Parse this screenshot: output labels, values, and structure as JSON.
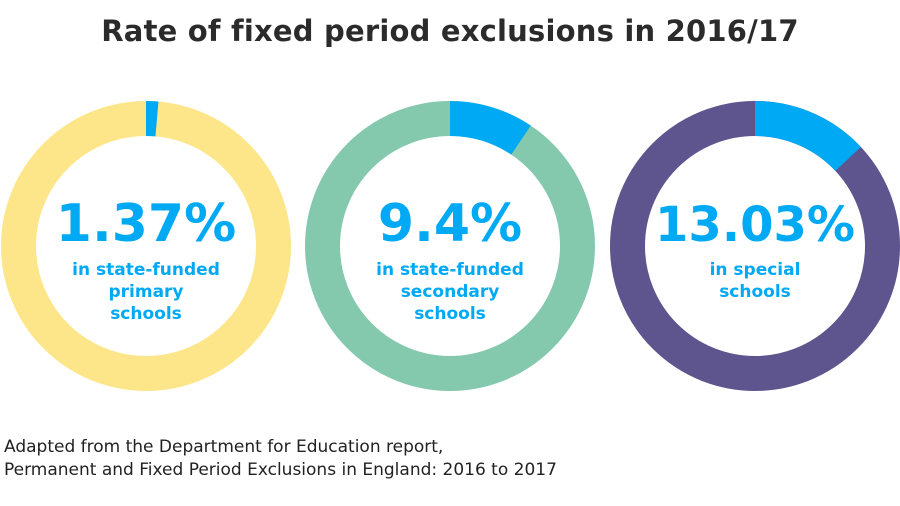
{
  "title": "Rate of fixed period exclusions in 2016/17",
  "source": {
    "line1": "Adapted from the Department for Education report,",
    "line2": "Permanent and Fixed Period Exclusions in England: 2016 to 2017"
  },
  "colors": {
    "highlight": "#00a9f4",
    "text_blue": "#00a9f4",
    "title": "#2b2b2b"
  },
  "chart_data": [
    {
      "type": "pie",
      "value": 1.37,
      "unit": "%",
      "value_label": "1.37%",
      "label_lines": [
        "in state-funded",
        "primary",
        "schools"
      ],
      "ring_color": "#fde68a",
      "highlight_color": "#00a9f4"
    },
    {
      "type": "pie",
      "value": 9.4,
      "unit": "%",
      "value_label": "9.4%",
      "label_lines": [
        "in state-funded",
        "secondary",
        "schools"
      ],
      "ring_color": "#84c9ad",
      "highlight_color": "#00a9f4"
    },
    {
      "type": "pie",
      "value": 13.03,
      "unit": "%",
      "value_label": "13.03%",
      "label_lines": [
        "in special",
        "schools"
      ],
      "ring_color": "#5e548e",
      "highlight_color": "#00a9f4"
    }
  ]
}
